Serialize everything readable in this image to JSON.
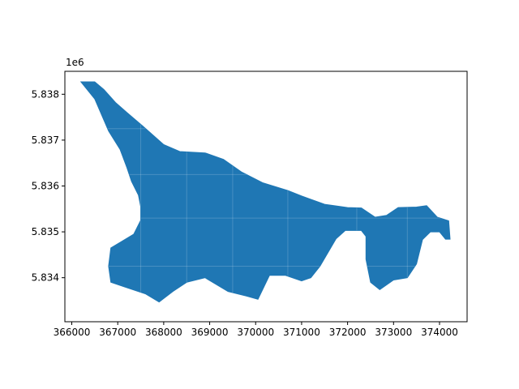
{
  "chart_data": {
    "type": "area",
    "title": "",
    "xlabel": "",
    "ylabel": "",
    "y_offset_label": "1e6",
    "xlim": [
      365850,
      374600
    ],
    "ylim": [
      5833040,
      5838500
    ],
    "grid": false,
    "x_ticks": [
      366000,
      367000,
      368000,
      369000,
      370000,
      371000,
      372000,
      373000,
      374000
    ],
    "x_tick_labels": [
      "366000",
      "367000",
      "368000",
      "369000",
      "370000",
      "371000",
      "372000",
      "373000",
      "374000"
    ],
    "y_ticks": [
      5834000,
      5835000,
      5836000,
      5837000,
      5838000
    ],
    "y_tick_labels": [
      "5.834",
      "5.835",
      "5.836",
      "5.837",
      "5.838"
    ],
    "fill_color": "#1f77b4",
    "series": [
      {
        "polygon": [
          [
            366200,
            5838270
          ],
          [
            366500,
            5838270
          ],
          [
            366700,
            5838100
          ],
          [
            366950,
            5837820
          ],
          [
            367200,
            5837600
          ],
          [
            367550,
            5837300
          ],
          [
            368000,
            5836900
          ],
          [
            368350,
            5836750
          ],
          [
            368900,
            5836720
          ],
          [
            369300,
            5836580
          ],
          [
            369700,
            5836300
          ],
          [
            370150,
            5836070
          ],
          [
            370700,
            5835900
          ],
          [
            371000,
            5835780
          ],
          [
            371500,
            5835600
          ],
          [
            372000,
            5835530
          ],
          [
            372300,
            5835520
          ],
          [
            372600,
            5835320
          ],
          [
            372850,
            5835360
          ],
          [
            373100,
            5835530
          ],
          [
            373500,
            5835540
          ],
          [
            373720,
            5835570
          ],
          [
            373950,
            5835320
          ],
          [
            374200,
            5835240
          ],
          [
            374230,
            5834840
          ],
          [
            374130,
            5834840
          ],
          [
            374000,
            5835000
          ],
          [
            373800,
            5835000
          ],
          [
            373630,
            5834830
          ],
          [
            373500,
            5834300
          ],
          [
            373300,
            5834000
          ],
          [
            373000,
            5833950
          ],
          [
            372700,
            5833740
          ],
          [
            372500,
            5833900
          ],
          [
            372400,
            5834400
          ],
          [
            372400,
            5834900
          ],
          [
            372300,
            5835030
          ],
          [
            371950,
            5835030
          ],
          [
            371750,
            5834850
          ],
          [
            371400,
            5834250
          ],
          [
            371200,
            5834000
          ],
          [
            371000,
            5833930
          ],
          [
            370650,
            5834050
          ],
          [
            370300,
            5834050
          ],
          [
            370050,
            5833530
          ],
          [
            369800,
            5833600
          ],
          [
            369400,
            5833700
          ],
          [
            368900,
            5834000
          ],
          [
            368500,
            5833900
          ],
          [
            368200,
            5833700
          ],
          [
            367900,
            5833470
          ],
          [
            367600,
            5833650
          ],
          [
            367150,
            5833800
          ],
          [
            366850,
            5833900
          ],
          [
            366800,
            5834250
          ],
          [
            366850,
            5834650
          ],
          [
            367100,
            5834800
          ],
          [
            367350,
            5834950
          ],
          [
            367500,
            5835250
          ],
          [
            367500,
            5835550
          ],
          [
            367450,
            5835800
          ],
          [
            367300,
            5836100
          ],
          [
            367200,
            5836400
          ],
          [
            367050,
            5836800
          ],
          [
            366800,
            5837200
          ],
          [
            366500,
            5837900
          ],
          [
            366200,
            5838270
          ]
        ]
      }
    ]
  }
}
